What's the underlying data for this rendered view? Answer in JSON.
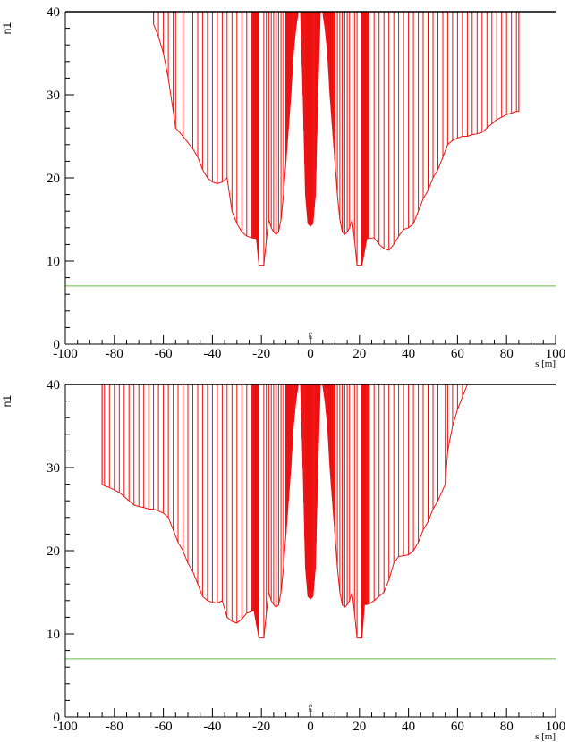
{
  "colors": {
    "aperture": "#ee1111",
    "threshold": "#66bb44",
    "axis": "#000000"
  },
  "chart_data": [
    {
      "type": "area",
      "xlabel": "s [m]",
      "ylabel": "n1",
      "xlim": [
        -100,
        100
      ],
      "ylim": [
        0,
        40
      ],
      "x_ticks": [
        -100,
        -80,
        -60,
        -40,
        -20,
        0,
        20,
        40,
        60,
        80,
        100
      ],
      "y_ticks": [
        0,
        10,
        20,
        30,
        40
      ],
      "annotation": "IP5",
      "threshold": 7,
      "envelope": {
        "s": [
          -64,
          -62,
          -60,
          -58,
          -56,
          -55,
          -52,
          -48,
          -46,
          -44,
          -42,
          -40,
          -38,
          -36,
          -34,
          -32,
          -30,
          -28,
          -26,
          -24,
          -22,
          -21,
          -19,
          -18,
          -17,
          -16,
          -15,
          -14,
          -13,
          -12,
          -11,
          -10,
          -9,
          -8,
          -7,
          -6,
          -5,
          -4,
          -3,
          -2,
          -1,
          0,
          1,
          2,
          3,
          4,
          5,
          6,
          7,
          8,
          9,
          10,
          11,
          12,
          13,
          14,
          15,
          16,
          17,
          18,
          19,
          21,
          23,
          26,
          28,
          30,
          32,
          34,
          36,
          38,
          40,
          42,
          44,
          46,
          48,
          50,
          52,
          54,
          56,
          58,
          60,
          62,
          64,
          66,
          68,
          70,
          72,
          74,
          76,
          78,
          80,
          82,
          84,
          85
        ],
        "n1": [
          38.5,
          37,
          35,
          32,
          28,
          26,
          25,
          23.5,
          22.5,
          21,
          20,
          19.5,
          19.3,
          19.5,
          20,
          16,
          14.5,
          13.5,
          13.0,
          12.8,
          12.7,
          9.5,
          9.5,
          12.5,
          15,
          14,
          13.5,
          13.2,
          13.5,
          15,
          18,
          22,
          26,
          30,
          35,
          38,
          40,
          40,
          30,
          18,
          14.5,
          14.2,
          14.5,
          18,
          30,
          40,
          40,
          38,
          35,
          30,
          26,
          22,
          18,
          15,
          13.5,
          13.2,
          13.5,
          14,
          15,
          12.5,
          9.5,
          9.5,
          12.7,
          12.8,
          12,
          11.5,
          11.3,
          12,
          13,
          13.8,
          14,
          14.5,
          16,
          17.5,
          18.5,
          20,
          21,
          22.5,
          24,
          24.5,
          24.8,
          25,
          25,
          25.2,
          25.3,
          25.5,
          26,
          26.5,
          27,
          27.3,
          27.6,
          27.8,
          28,
          28
        ]
      },
      "spike_ranges": [
        [
          -24,
          -21
        ],
        [
          -10,
          10
        ],
        [
          21,
          24
        ]
      ]
    },
    {
      "type": "area",
      "xlabel": "s [m]",
      "ylabel": "n1",
      "xlim": [
        -100,
        100
      ],
      "ylim": [
        0,
        40
      ],
      "x_ticks": [
        -100,
        -80,
        -60,
        -40,
        -20,
        0,
        20,
        40,
        60,
        80,
        100
      ],
      "y_ticks": [
        0,
        10,
        20,
        30,
        40
      ],
      "annotation": "IP5",
      "threshold": 7,
      "envelope": {
        "s": [
          -85,
          -84,
          -82,
          -80,
          -78,
          -76,
          -74,
          -72,
          -70,
          -68,
          -66,
          -64,
          -62,
          -60,
          -58,
          -56,
          -54,
          -52,
          -50,
          -48,
          -46,
          -44,
          -42,
          -40,
          -38,
          -36,
          -34,
          -32,
          -30,
          -28,
          -26,
          -23,
          -21,
          -19,
          -18,
          -17,
          -16,
          -15,
          -14,
          -13,
          -12,
          -11,
          -10,
          -9,
          -8,
          -7,
          -6,
          -5,
          -4,
          -3,
          -2,
          -1,
          0,
          1,
          2,
          3,
          4,
          5,
          6,
          7,
          8,
          9,
          10,
          11,
          12,
          13,
          14,
          15,
          16,
          17,
          18,
          19,
          21,
          22,
          24,
          26,
          28,
          30,
          32,
          34,
          36,
          38,
          40,
          42,
          44,
          46,
          48,
          50,
          52,
          55,
          56,
          58,
          60,
          62,
          64
        ],
        "n1": [
          28,
          27.8,
          27.6,
          27.3,
          27,
          26.5,
          26,
          25.5,
          25.3,
          25.2,
          25,
          25,
          24.8,
          24.5,
          24,
          22.5,
          21,
          20,
          18.5,
          17.5,
          16,
          14.5,
          14,
          13.8,
          13.7,
          14,
          12,
          11.5,
          11.3,
          11.8,
          12.5,
          12.8,
          9.5,
          9.5,
          12.5,
          15,
          14,
          13.5,
          13.2,
          13.5,
          15,
          18,
          22,
          26,
          30,
          35,
          38,
          40,
          40,
          30,
          18,
          14.5,
          14.2,
          14.5,
          18,
          30,
          40,
          40,
          38,
          35,
          30,
          26,
          22,
          18,
          15,
          13.5,
          13.2,
          13.5,
          14,
          15,
          12.5,
          9.5,
          9.5,
          13.5,
          13.6,
          14,
          14.5,
          15,
          16.5,
          18.5,
          19.3,
          19.4,
          19.5,
          20,
          21,
          22.5,
          23.5,
          25,
          26,
          28,
          32,
          35,
          37,
          38.5,
          40
        ]
      },
      "spike_ranges": [
        [
          -24,
          -21
        ],
        [
          -10,
          10
        ],
        [
          21,
          24
        ]
      ]
    }
  ]
}
